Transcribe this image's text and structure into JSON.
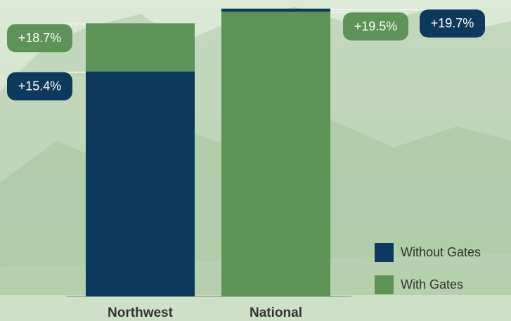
{
  "chart_data": {
    "type": "bar",
    "categories": [
      "Northwest",
      "National"
    ],
    "series": [
      {
        "name": "Without Gates",
        "color": "#0d3a5c",
        "values": [
          15.4,
          19.7
        ],
        "value_labels": [
          "+15.4%",
          "+19.7%"
        ]
      },
      {
        "name": "With Gates",
        "color": "#5e9358",
        "values": [
          18.7,
          19.5
        ],
        "value_labels": [
          "+18.7%",
          "+19.5%"
        ]
      }
    ],
    "ylim": [
      0,
      20.3
    ],
    "legend": "bottom-right"
  }
}
